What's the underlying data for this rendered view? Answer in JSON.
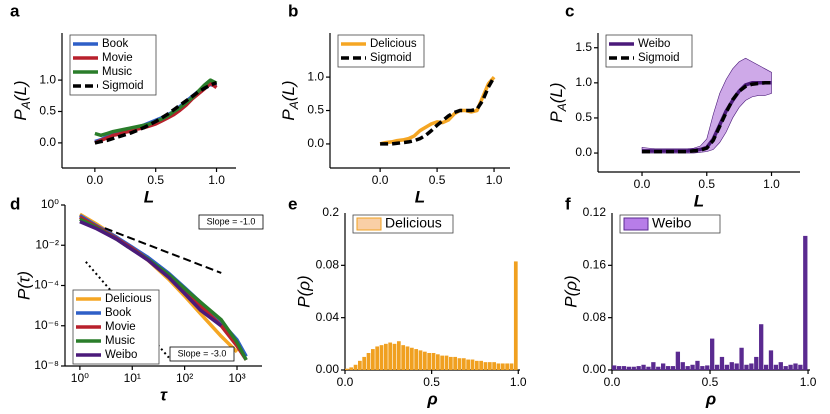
{
  "chart_data": [
    {
      "type": "line",
      "panel_label": "a",
      "xlabel": "L",
      "ylabel": [
        "P",
        "A",
        "(L)"
      ],
      "xlim": [
        -0.27,
        1.16
      ],
      "ylim": [
        -0.4,
        1.75
      ],
      "xticks": [
        {
          "value": 0,
          "label": "0.0"
        },
        0.5,
        {
          "value": 1,
          "label": "1.0"
        }
      ],
      "yticks": [
        {
          "value": 0,
          "label": "0.0"
        },
        0.5,
        {
          "value": 1,
          "label": "1.0"
        }
      ],
      "legend": "upper left",
      "x": [
        0,
        0.05,
        0.1,
        0.15,
        0.2,
        0.25,
        0.3,
        0.35,
        0.4,
        0.45,
        0.5,
        0.55,
        0.6,
        0.65,
        0.7,
        0.75,
        0.8,
        0.85,
        0.9,
        0.95,
        1.0
      ],
      "series": [
        {
          "name": "Book",
          "color": "#2e5fc7",
          "style": "solid",
          "values": [
            0.02,
            0.05,
            0.1,
            0.14,
            0.17,
            0.2,
            0.22,
            0.25,
            0.28,
            0.32,
            0.36,
            0.4,
            0.45,
            0.5,
            0.58,
            0.66,
            0.74,
            0.82,
            0.88,
            0.93,
            0.9
          ]
        },
        {
          "name": "Movie",
          "color": "#b8202c",
          "style": "solid",
          "values": [
            0.0,
            0.04,
            0.08,
            0.12,
            0.14,
            0.17,
            0.19,
            0.22,
            0.24,
            0.27,
            0.3,
            0.35,
            0.4,
            0.45,
            0.52,
            0.6,
            0.7,
            0.78,
            0.86,
            0.95,
            0.88
          ]
        },
        {
          "name": "Music",
          "color": "#2a7d2a",
          "style": "solid",
          "values": [
            0.15,
            0.12,
            0.15,
            0.18,
            0.2,
            0.22,
            0.24,
            0.26,
            0.28,
            0.3,
            0.34,
            0.38,
            0.43,
            0.5,
            0.56,
            0.64,
            0.72,
            0.82,
            0.92,
            1.0,
            0.95
          ]
        },
        {
          "name": "Sigmoid",
          "color": "#000000",
          "style": "dashed",
          "values": [
            0.0,
            0.02,
            0.04,
            0.07,
            0.1,
            0.13,
            0.16,
            0.2,
            0.24,
            0.29,
            0.34,
            0.4,
            0.46,
            0.53,
            0.6,
            0.67,
            0.74,
            0.81,
            0.87,
            0.92,
            0.96
          ]
        }
      ]
    },
    {
      "type": "line",
      "panel_label": "b",
      "xlabel": "L",
      "ylabel": [
        "P",
        "A",
        "(L)"
      ],
      "xlim": [
        -0.44,
        1.14
      ],
      "ylim": [
        -0.36,
        1.66
      ],
      "xticks": [
        {
          "value": 0,
          "label": "0.0"
        },
        0.5,
        {
          "value": 1,
          "label": "1.0"
        }
      ],
      "yticks": [
        {
          "value": 0,
          "label": "0.0"
        },
        0.5,
        {
          "value": 1,
          "label": "1.0"
        }
      ],
      "legend": "upper left",
      "x": [
        0,
        0.05,
        0.1,
        0.15,
        0.2,
        0.25,
        0.3,
        0.35,
        0.4,
        0.45,
        0.5,
        0.55,
        0.6,
        0.65,
        0.7,
        0.75,
        0.8,
        0.85,
        0.9,
        0.95,
        1.0
      ],
      "series": [
        {
          "name": "Delicious",
          "color": "#f5a623",
          "style": "solid",
          "values": [
            0.0,
            0.02,
            0.03,
            0.05,
            0.06,
            0.08,
            0.12,
            0.2,
            0.25,
            0.3,
            0.33,
            0.32,
            0.36,
            0.45,
            0.5,
            0.5,
            0.48,
            0.5,
            0.7,
            0.9,
            1.0
          ]
        },
        {
          "name": "Sigmoid",
          "color": "#000000",
          "style": "dashed",
          "values": [
            0,
            0,
            0,
            0.01,
            0.02,
            0.03,
            0.05,
            0.08,
            0.13,
            0.2,
            0.28,
            0.35,
            0.42,
            0.47,
            0.5,
            0.5,
            0.5,
            0.52,
            0.65,
            0.85,
            1.0
          ]
        }
      ]
    },
    {
      "type": "line",
      "panel_label": "c",
      "xlabel": "L",
      "ylabel": [
        "P",
        "A",
        "(L)"
      ],
      "xlim": [
        -0.34,
        1.22
      ],
      "ylim": [
        -0.27,
        1.71
      ],
      "xticks": [
        {
          "value": 0,
          "label": "0.0"
        },
        0.5,
        {
          "value": 1,
          "label": "1.0"
        }
      ],
      "yticks": [
        {
          "value": 0,
          "label": "0.0"
        },
        0.5,
        {
          "value": 1,
          "label": "1.0"
        },
        1.5
      ],
      "legend": "upper left",
      "x": [
        0,
        0.05,
        0.1,
        0.15,
        0.2,
        0.25,
        0.3,
        0.35,
        0.4,
        0.45,
        0.5,
        0.55,
        0.6,
        0.65,
        0.7,
        0.75,
        0.8,
        0.85,
        0.9,
        0.95,
        1.0
      ],
      "series": [
        {
          "name": "Weibo",
          "color": "#4b1a7a",
          "band_color": "#c9a0e6",
          "style": "solid",
          "values": [
            0.03,
            0.03,
            0.03,
            0.03,
            0.03,
            0.03,
            0.03,
            0.03,
            0.04,
            0.05,
            0.08,
            0.2,
            0.4,
            0.6,
            0.75,
            0.88,
            0.97,
            1.0,
            1.0,
            1.0,
            1.0
          ],
          "band_lower": [
            0,
            0,
            0,
            0,
            0,
            0,
            0,
            0,
            0,
            0.01,
            0.02,
            0.05,
            0.15,
            0.3,
            0.5,
            0.65,
            0.75,
            0.8,
            0.82,
            0.82,
            0.85
          ],
          "band_upper": [
            0.08,
            0.07,
            0.06,
            0.06,
            0.06,
            0.06,
            0.06,
            0.06,
            0.07,
            0.1,
            0.2,
            0.55,
            0.85,
            1.05,
            1.2,
            1.3,
            1.35,
            1.3,
            1.25,
            1.2,
            1.15
          ]
        },
        {
          "name": "Sigmoid",
          "color": "#000000",
          "style": "dashed",
          "values": [
            0.02,
            0.02,
            0.02,
            0.02,
            0.02,
            0.02,
            0.02,
            0.02,
            0.03,
            0.04,
            0.07,
            0.18,
            0.38,
            0.58,
            0.76,
            0.88,
            0.95,
            0.98,
            0.99,
            1.0,
            1.0
          ]
        }
      ]
    },
    {
      "type": "line",
      "panel_label": "d",
      "xlabel": "τ",
      "ylabel": "P(τ)",
      "xscale": "log",
      "yscale": "log",
      "xlim": [
        0.52,
        3000
      ],
      "ylim": [
        1e-08,
        1
      ],
      "xticks": [
        {
          "value": 1,
          "label": "10⁰"
        },
        {
          "value": 10,
          "label": "10¹"
        },
        {
          "value": 100,
          "label": "10²"
        },
        {
          "value": 1000,
          "label": "10³"
        }
      ],
      "yticks": [
        {
          "value": 1,
          "label": "10⁰"
        },
        {
          "value": 0.01,
          "label": "10⁻²"
        },
        {
          "value": 0.0001,
          "label": "10⁻⁴"
        },
        {
          "value": 1e-06,
          "label": "10⁻⁶"
        },
        {
          "value": 1e-08,
          "label": "10⁻⁸"
        }
      ],
      "legend": "lower left",
      "x": [
        1,
        2,
        5,
        10,
        20,
        50,
        100,
        200,
        500,
        1000,
        1500
      ],
      "series": [
        {
          "name": "Delicious",
          "color": "#f5a623",
          "style": "solid",
          "values": [
            0.35,
            0.12,
            0.025,
            0.007,
            0.0018,
            0.0002,
            3e-05,
            4e-06,
            3e-07,
            5e-08,
            null
          ]
        },
        {
          "name": "Book",
          "color": "#2e5fc7",
          "style": "solid",
          "values": [
            0.3,
            0.1,
            0.025,
            0.008,
            0.0025,
            0.0004,
            8e-05,
            1.5e-05,
            1.5e-06,
            2e-07,
            3e-08
          ]
        },
        {
          "name": "Movie",
          "color": "#b8202c",
          "style": "solid",
          "values": [
            0.25,
            0.09,
            0.022,
            0.007,
            0.002,
            0.0003,
            6e-05,
            1e-05,
            1e-06,
            1e-07,
            2e-08
          ]
        },
        {
          "name": "Music",
          "color": "#2a7d2a",
          "style": "solid",
          "values": [
            0.2,
            0.08,
            0.02,
            0.006,
            0.002,
            0.00035,
            7e-05,
            1.5e-05,
            2e-06,
            1.5e-07,
            2e-08
          ]
        },
        {
          "name": "Weibo",
          "color": "#4b1a7a",
          "style": "solid",
          "values": [
            0.15,
            0.07,
            0.02,
            0.006,
            0.0018,
            0.00025,
            4e-05,
            6e-06,
            1e-06,
            null,
            null
          ]
        }
      ],
      "guides": [
        {
          "label": "Slope = -1.0",
          "style": "dashed",
          "x": [
            3,
            500
          ],
          "y": [
            0.07,
            0.00042
          ]
        },
        {
          "label": "Slope = -3.0",
          "style": "dotted",
          "x": [
            1.3,
            50
          ],
          "y": [
            0.0015,
            2.6e-08
          ]
        }
      ]
    },
    {
      "type": "histogram",
      "panel_label": "e",
      "xlabel": "ρ",
      "ylabel": "P(ρ)",
      "xlim": [
        0,
        1.01
      ],
      "ylim": [
        0,
        0.12
      ],
      "xticks": [
        {
          "value": 0,
          "label": "0.0"
        },
        0.5,
        {
          "value": 1,
          "label": "1.0"
        }
      ],
      "yticks": [
        {
          "value": 0,
          "label": "0.00"
        },
        0.04,
        0.08
      ],
      "ytop_label": "0.2",
      "legend": "upper left",
      "bins": [
        0,
        0.025,
        0.05,
        0.075,
        0.1,
        0.125,
        0.15,
        0.175,
        0.2,
        0.225,
        0.25,
        0.275,
        0.3,
        0.325,
        0.35,
        0.375,
        0.4,
        0.425,
        0.45,
        0.475,
        0.5,
        0.525,
        0.55,
        0.575,
        0.6,
        0.625,
        0.65,
        0.675,
        0.7,
        0.725,
        0.75,
        0.775,
        0.8,
        0.825,
        0.85,
        0.875,
        0.9,
        0.925,
        0.95,
        0.975,
        1.0
      ],
      "series": [
        {
          "name": "Delicious",
          "color": "#f0a020",
          "legend_color": "#f9cfa6",
          "values": [
            0.001,
            0.002,
            0.004,
            0.007,
            0.01,
            0.013,
            0.016,
            0.018,
            0.019,
            0.02,
            0.021,
            0.02,
            0.022,
            0.019,
            0.018,
            0.017,
            0.016,
            0.015,
            0.014,
            0.013,
            0.013,
            0.012,
            0.011,
            0.011,
            0.01,
            0.01,
            0.009,
            0.009,
            0.008,
            0.008,
            0.007,
            0.007,
            0.006,
            0.006,
            0.006,
            0.005,
            0.005,
            0.005,
            0.005,
            0.083
          ]
        }
      ]
    },
    {
      "type": "histogram",
      "panel_label": "f",
      "xlabel": "ρ",
      "ylabel": "P(ρ)",
      "xlim": [
        0,
        1.01
      ],
      "ylim": [
        0,
        0.24
      ],
      "xticks": [
        {
          "value": 0,
          "label": "0.0"
        },
        0.5,
        {
          "value": 1,
          "label": "1.0"
        }
      ],
      "yticks": [
        {
          "value": 0,
          "label": "0.00"
        },
        0.08,
        0.16
      ],
      "ytop_label": "0.12",
      "legend": "upper left",
      "bins": [
        0,
        0.025,
        0.05,
        0.075,
        0.1,
        0.125,
        0.15,
        0.175,
        0.2,
        0.225,
        0.25,
        0.275,
        0.3,
        0.325,
        0.35,
        0.375,
        0.4,
        0.425,
        0.45,
        0.475,
        0.5,
        0.525,
        0.55,
        0.575,
        0.6,
        0.625,
        0.65,
        0.675,
        0.7,
        0.725,
        0.75,
        0.775,
        0.8,
        0.825,
        0.85,
        0.875,
        0.9,
        0.925,
        0.95,
        0.975,
        1.0
      ],
      "series": [
        {
          "name": "Weibo",
          "color": "#5a2a90",
          "legend_color": "#b77de8",
          "values": [
            0.007,
            0.006,
            0.006,
            0.005,
            0.005,
            0.006,
            0.008,
            0.005,
            0.012,
            0.005,
            0.01,
            0.006,
            0.006,
            0.028,
            0.012,
            0.006,
            0.008,
            0.014,
            0.006,
            0.007,
            0.048,
            0.008,
            0.02,
            0.008,
            0.012,
            0.01,
            0.034,
            0.008,
            0.01,
            0.02,
            0.07,
            0.008,
            0.03,
            0.008,
            0.012,
            0.006,
            0.008,
            0.01,
            0.008,
            0.205
          ]
        }
      ]
    }
  ]
}
